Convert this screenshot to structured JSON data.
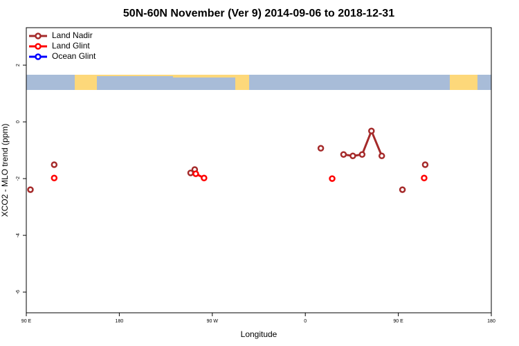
{
  "chart_data": {
    "type": "scatter",
    "title": "50N-60N November (Ver 9)   2014-09-06 to 2018-12-31",
    "xlabel": "Longitude",
    "ylabel": "XCO2 - MLO trend (ppm)",
    "xlim": [
      90,
      540
    ],
    "xticks": [
      {
        "value": 90,
        "label": "90 E"
      },
      180,
      {
        "value": 270,
        "label": "90 W"
      },
      {
        "value": 360,
        "label": "0"
      },
      {
        "value": 450,
        "label": "90 E"
      },
      {
        "value": 540,
        "label": "180"
      }
    ],
    "ylim": [
      -6.73,
      3.32
    ],
    "yticks": [
      -6,
      -4,
      -2,
      0,
      2
    ],
    "legend": "top-left",
    "series": [
      {
        "name": "Land Nadir",
        "color": "#a52a2a",
        "x": [
          94,
          117,
          249,
          253,
          375,
          397,
          406,
          415,
          424,
          434,
          454,
          476
        ],
        "values": [
          -2.39,
          -1.51,
          -1.8,
          -1.68,
          -0.93,
          -1.15,
          -1.2,
          -1.15,
          -0.32,
          -1.2,
          -2.39,
          -1.51
        ]
      },
      {
        "name": "Land Glint",
        "color": "#ff0000",
        "x": [
          117,
          254,
          262,
          386,
          475
        ],
        "values": [
          -1.98,
          -1.83,
          -1.98,
          -2.0,
          -1.98
        ]
      },
      {
        "name": "Ocean Glint",
        "color": "#0000ff",
        "x": [],
        "values": []
      }
    ]
  }
}
